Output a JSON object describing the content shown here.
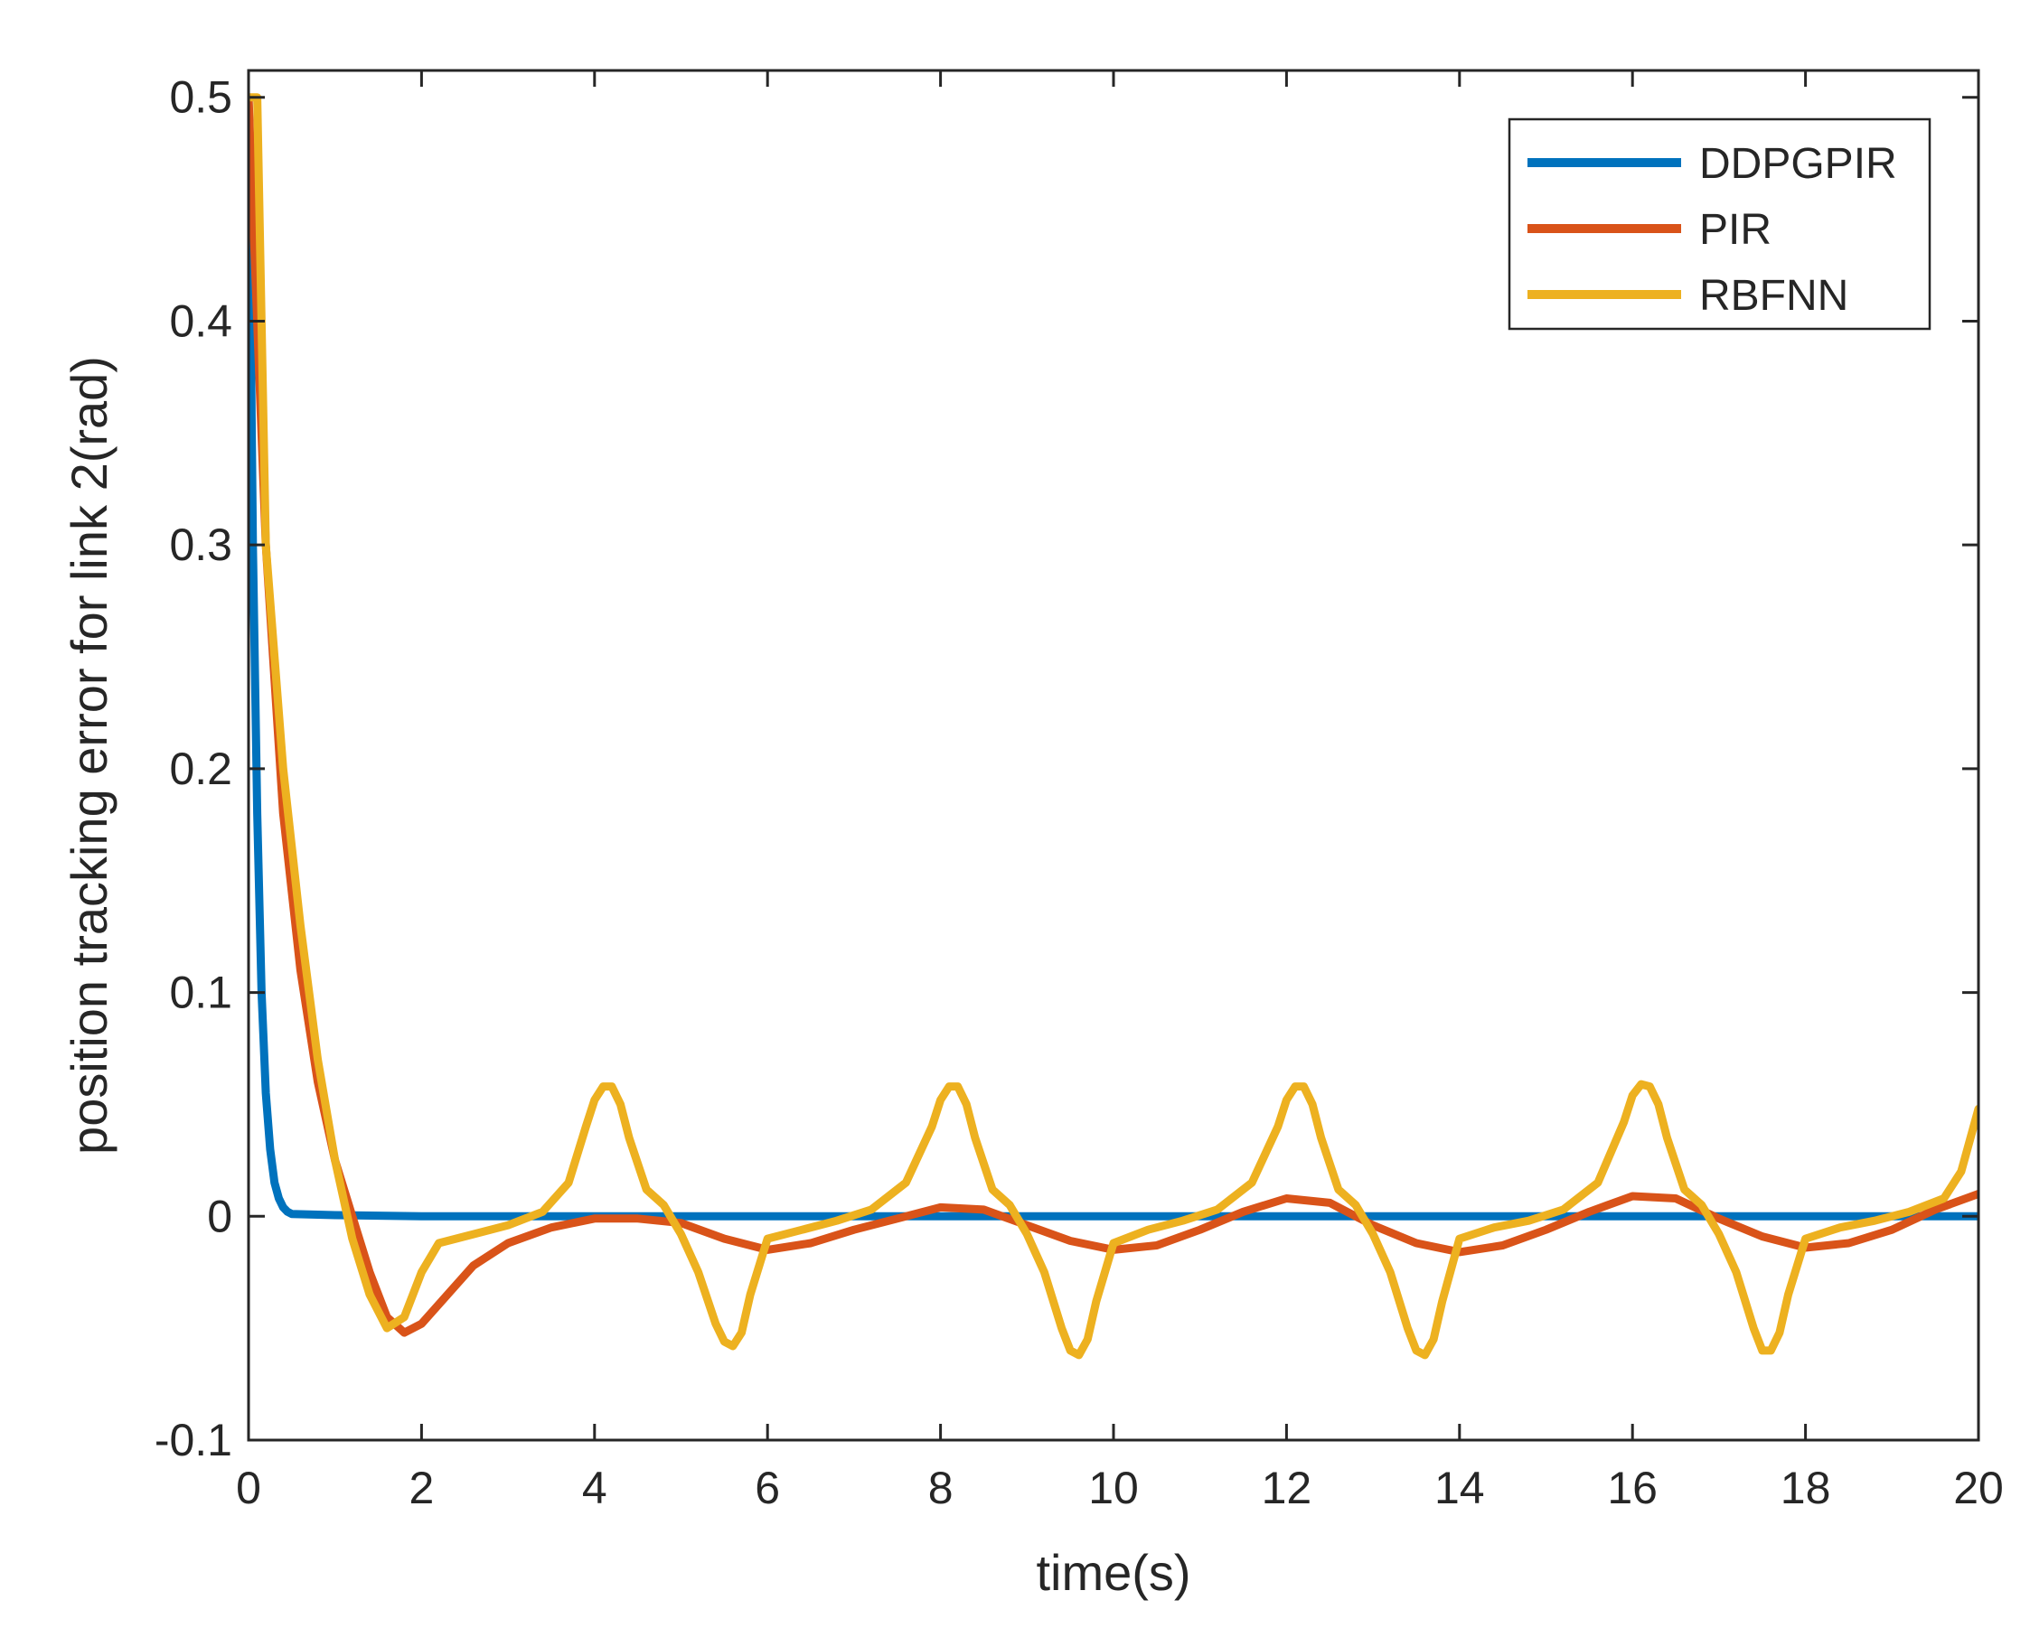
{
  "chart_data": {
    "type": "line",
    "title": "",
    "xlabel": "time(s)",
    "ylabel": "position tracking error for link 2(rad)",
    "xlim": [
      0,
      20
    ],
    "ylim": [
      -0.1,
      0.5
    ],
    "x_ticks": [
      0,
      2,
      4,
      6,
      8,
      10,
      12,
      14,
      16,
      18,
      20
    ],
    "x_tick_labels": [
      "0",
      "2",
      "4",
      "6",
      "8",
      "10",
      "12",
      "14",
      "16",
      "18",
      "20"
    ],
    "y_ticks": [
      -0.1,
      0,
      0.1,
      0.2,
      0.3,
      0.4,
      0.5
    ],
    "y_tick_labels": [
      "-0.1",
      "0",
      "0.1",
      "0.2",
      "0.3",
      "0.4",
      "0.5"
    ],
    "grid": false,
    "legend_position": "top-right",
    "series": [
      {
        "name": "DDPGPIR",
        "color": "#0072BD",
        "x": [
          0,
          0.05,
          0.1,
          0.15,
          0.2,
          0.25,
          0.3,
          0.35,
          0.4,
          0.45,
          0.5,
          1,
          2,
          4,
          6,
          8,
          10,
          12,
          14,
          16,
          18,
          20
        ],
        "y": [
          0.5,
          0.3,
          0.18,
          0.1,
          0.055,
          0.03,
          0.015,
          0.008,
          0.004,
          0.002,
          0.001,
          0.0005,
          0,
          0,
          0,
          0,
          0,
          0,
          0,
          0,
          0,
          0
        ]
      },
      {
        "name": "PIR",
        "color": "#D95319",
        "x": [
          0,
          0.2,
          0.4,
          0.6,
          0.8,
          1.0,
          1.2,
          1.4,
          1.6,
          1.8,
          2.0,
          2.3,
          2.6,
          3.0,
          3.5,
          4.0,
          4.5,
          5.0,
          5.5,
          6.0,
          6.5,
          7.0,
          7.5,
          8.0,
          8.5,
          9.0,
          9.5,
          10.0,
          10.5,
          11.0,
          11.5,
          12.0,
          12.5,
          13.0,
          13.5,
          14.0,
          14.5,
          15.0,
          15.5,
          16.0,
          16.5,
          17.0,
          17.5,
          18.0,
          18.5,
          19.0,
          19.5,
          20.0
        ],
        "y": [
          0.5,
          0.3,
          0.18,
          0.11,
          0.06,
          0.025,
          0.0,
          -0.025,
          -0.045,
          -0.052,
          -0.048,
          -0.035,
          -0.022,
          -0.012,
          -0.005,
          -0.001,
          -0.001,
          -0.003,
          -0.01,
          -0.015,
          -0.012,
          -0.006,
          -0.001,
          0.004,
          0.003,
          -0.004,
          -0.011,
          -0.015,
          -0.013,
          -0.006,
          0.002,
          0.008,
          0.006,
          -0.004,
          -0.012,
          -0.016,
          -0.013,
          -0.006,
          0.002,
          0.009,
          0.008,
          -0.001,
          -0.009,
          -0.014,
          -0.012,
          -0.006,
          0.003,
          0.01
        ]
      },
      {
        "name": "RBFNN",
        "color": "#EDB120",
        "x": [
          0,
          0.1,
          0.2,
          0.4,
          0.6,
          0.8,
          1.0,
          1.2,
          1.4,
          1.6,
          1.8,
          2.0,
          2.2,
          2.6,
          3.0,
          3.4,
          3.7,
          3.9,
          4.0,
          4.1,
          4.2,
          4.3,
          4.4,
          4.6,
          4.8,
          5.0,
          5.2,
          5.4,
          5.5,
          5.6,
          5.7,
          5.8,
          6.0,
          6.4,
          6.8,
          7.2,
          7.6,
          7.9,
          8.0,
          8.1,
          8.2,
          8.3,
          8.4,
          8.6,
          8.8,
          9.0,
          9.2,
          9.4,
          9.5,
          9.6,
          9.7,
          9.8,
          10.0,
          10.4,
          10.8,
          11.2,
          11.6,
          11.9,
          12.0,
          12.1,
          12.2,
          12.3,
          12.4,
          12.6,
          12.8,
          13.0,
          13.2,
          13.4,
          13.5,
          13.6,
          13.7,
          13.8,
          14.0,
          14.4,
          14.8,
          15.2,
          15.6,
          15.9,
          16.0,
          16.1,
          16.2,
          16.3,
          16.4,
          16.6,
          16.8,
          17.0,
          17.2,
          17.4,
          17.5,
          17.6,
          17.7,
          17.8,
          18.0,
          18.4,
          18.8,
          19.2,
          19.6,
          19.8,
          20.0
        ],
        "y": [
          0.5,
          0.5,
          0.3,
          0.2,
          0.13,
          0.07,
          0.025,
          -0.01,
          -0.035,
          -0.05,
          -0.045,
          -0.025,
          -0.012,
          -0.008,
          -0.004,
          0.002,
          0.015,
          0.04,
          0.052,
          0.058,
          0.058,
          0.05,
          0.035,
          0.012,
          0.005,
          -0.008,
          -0.025,
          -0.048,
          -0.056,
          -0.058,
          -0.052,
          -0.035,
          -0.01,
          -0.006,
          -0.002,
          0.003,
          0.015,
          0.04,
          0.052,
          0.058,
          0.058,
          0.05,
          0.035,
          0.012,
          0.005,
          -0.008,
          -0.025,
          -0.05,
          -0.06,
          -0.062,
          -0.055,
          -0.038,
          -0.012,
          -0.006,
          -0.002,
          0.003,
          0.015,
          0.04,
          0.052,
          0.058,
          0.058,
          0.05,
          0.035,
          0.012,
          0.005,
          -0.008,
          -0.025,
          -0.05,
          -0.06,
          -0.062,
          -0.055,
          -0.038,
          -0.01,
          -0.005,
          -0.002,
          0.003,
          0.015,
          0.042,
          0.054,
          0.059,
          0.058,
          0.05,
          0.035,
          0.012,
          0.005,
          -0.008,
          -0.025,
          -0.05,
          -0.06,
          -0.06,
          -0.052,
          -0.035,
          -0.01,
          -0.005,
          -0.002,
          0.002,
          0.008,
          0.02,
          0.048
        ]
      }
    ]
  }
}
